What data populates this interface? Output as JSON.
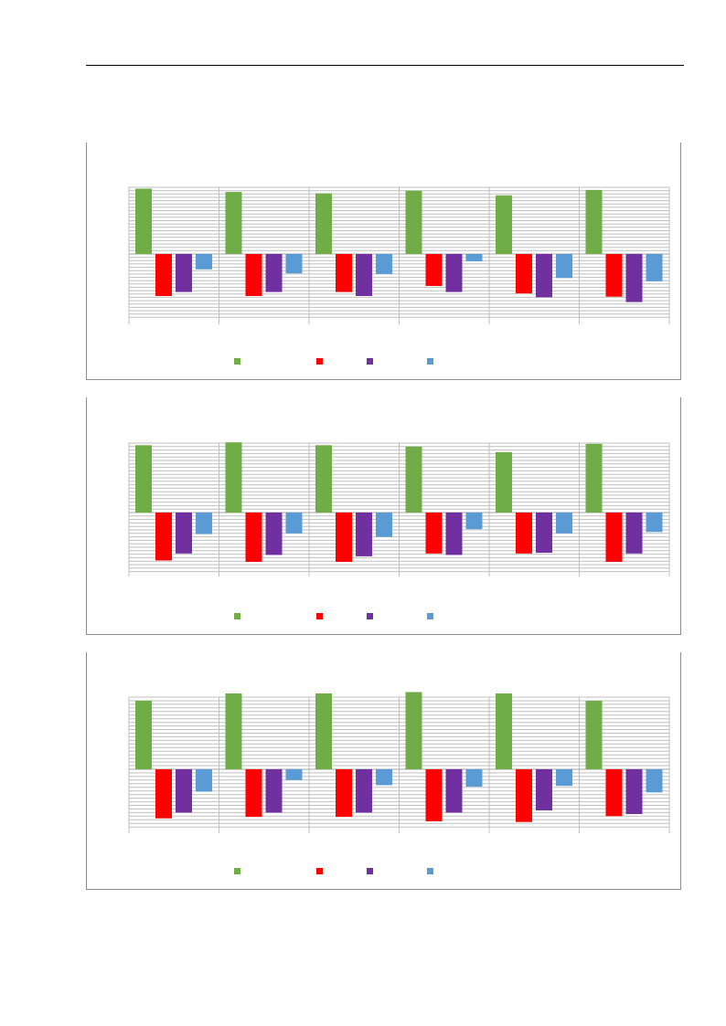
{
  "page": {
    "background": "#ffffff"
  },
  "colors": {
    "green": "#70ad47",
    "red": "#ff0000",
    "purple": "#7030a0",
    "blue": "#5b9bd5",
    "grid": "#bfbfbf",
    "border": "#8c8c8c"
  },
  "chart_data": [
    {
      "type": "bar",
      "categories": [
        "",
        "",
        "",
        "",
        "",
        ""
      ],
      "ylim": [
        -100,
        100
      ],
      "grid": true,
      "legend": "bottom",
      "series": [
        {
          "color": "#70ad47",
          "values": [
            98,
            93,
            91,
            95,
            88,
            96
          ]
        },
        {
          "color": "#ff0000",
          "values": [
            -63,
            -63,
            -57,
            -48,
            -59,
            -64
          ]
        },
        {
          "color": "#7030a0",
          "values": [
            -57,
            -57,
            -63,
            -57,
            -65,
            -72
          ]
        },
        {
          "color": "#5b9bd5",
          "values": [
            -23,
            -29,
            -30,
            -11,
            -36,
            -41
          ]
        }
      ]
    },
    {
      "type": "bar",
      "categories": [
        "",
        "",
        "",
        "",
        "",
        ""
      ],
      "ylim": [
        -100,
        100
      ],
      "grid": true,
      "legend": "bottom",
      "series": [
        {
          "color": "#70ad47",
          "values": [
            97,
            101,
            97,
            95,
            87,
            99
          ]
        },
        {
          "color": "#ff0000",
          "values": [
            -69,
            -71,
            -71,
            -59,
            -59,
            -71
          ]
        },
        {
          "color": "#7030a0",
          "values": [
            -59,
            -61,
            -63,
            -61,
            -58,
            -59
          ]
        },
        {
          "color": "#5b9bd5",
          "values": [
            -31,
            -30,
            -35,
            -24,
            -30,
            -28
          ]
        }
      ]
    },
    {
      "type": "bar",
      "categories": [
        "",
        "",
        "",
        "",
        "",
        ""
      ],
      "ylim": [
        -100,
        100
      ],
      "grid": true,
      "legend": "bottom",
      "series": [
        {
          "color": "#70ad47",
          "values": [
            95,
            105,
            105,
            107,
            105,
            95
          ]
        },
        {
          "color": "#ff0000",
          "values": [
            -68,
            -66,
            -66,
            -72,
            -73,
            -65
          ]
        },
        {
          "color": "#7030a0",
          "values": [
            -60,
            -60,
            -60,
            -60,
            -57,
            -62
          ]
        },
        {
          "color": "#5b9bd5",
          "values": [
            -31,
            -15,
            -22,
            -24,
            -23,
            -32
          ]
        }
      ]
    }
  ]
}
